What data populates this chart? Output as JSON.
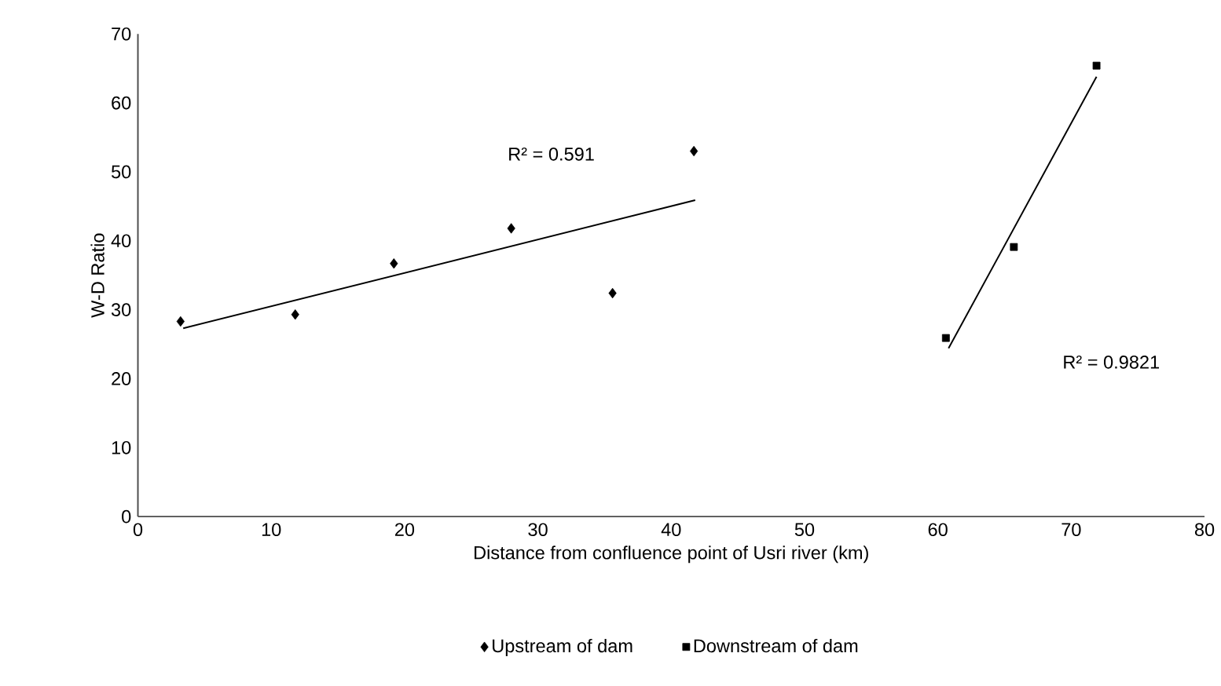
{
  "chart_data": {
    "type": "scatter",
    "xlabel": "Distance from confluence point of Usri river (km)",
    "ylabel": "W-D Ratio",
    "series": [
      {
        "name": "Upstream of dam",
        "marker": "diamond",
        "color": "#000000",
        "x": [
          3.2,
          11.8,
          19.2,
          28.0,
          35.6,
          41.7
        ],
        "values": [
          28.3,
          29.3,
          36.7,
          41.8,
          32.4,
          53.0
        ]
      },
      {
        "name": "Downstream of dam",
        "marker": "square",
        "color": "#000000",
        "x": [
          60.6,
          65.7,
          71.9
        ],
        "values": [
          25.9,
          39.1,
          65.4
        ]
      },
      {
        "type": "line",
        "color": "#000000",
        "x": [
          3.4,
          41.8
        ],
        "values": [
          27.3,
          45.9
        ]
      },
      {
        "type": "line",
        "color": "#000000",
        "x": [
          60.8,
          71.9
        ],
        "values": [
          24.4,
          63.8
        ]
      }
    ],
    "annotations": [
      "R² = 0.591",
      "R² = 0.9821"
    ],
    "xlim": [
      0,
      80
    ],
    "xticks": [
      0,
      10,
      20,
      30,
      40,
      50,
      60,
      70,
      80
    ],
    "ylim": [
      0,
      70
    ],
    "yticks": [
      0,
      10,
      20,
      30,
      40,
      50,
      60,
      70
    ],
    "grid": false,
    "legend": "bottom"
  }
}
